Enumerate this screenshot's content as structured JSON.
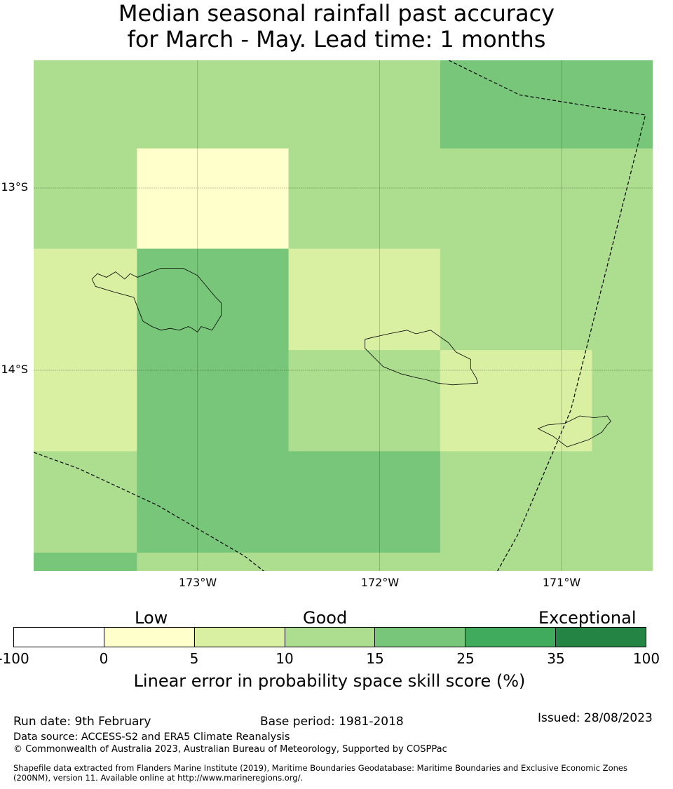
{
  "title": {
    "line1": "Median seasonal rainfall past accuracy",
    "line2": "for March - May. Lead time: 1 months"
  },
  "map": {
    "lat_labels": [
      "13°S",
      "14°S"
    ],
    "lon_labels": [
      "173°W",
      "172°W",
      "171°W"
    ],
    "extent": {
      "lon_min": -173.9,
      "lon_max": -170.5,
      "lat_min": -15.1,
      "lat_max": -12.3
    },
    "grid": {
      "lon_edges": [
        -173.9,
        -173.333,
        -172.5,
        -171.667,
        -170.833,
        -170.5
      ],
      "lat_edges": [
        -12.3,
        -12.783,
        -13.333,
        -13.889,
        -14.444,
        -15.0,
        -15.1
      ],
      "skill_classes": [
        [
          3,
          3,
          3,
          4,
          4
        ],
        [
          3,
          1,
          3,
          3,
          3
        ],
        [
          2,
          4,
          2,
          3,
          3
        ],
        [
          2,
          4,
          3,
          2,
          3
        ],
        [
          3,
          4,
          4,
          3,
          3
        ],
        [
          4,
          3,
          3,
          3,
          3
        ]
      ]
    },
    "boundary_lines": [
      [
        [
          -171.62,
          -12.3
        ],
        [
          -171.23,
          -12.49
        ],
        [
          -170.54,
          -12.6
        ],
        [
          -170.95,
          -14.22
        ],
        [
          -171.24,
          -14.9
        ],
        [
          -171.53,
          -15.42
        ]
      ],
      [
        [
          -173.9,
          -14.45
        ],
        [
          -173.65,
          -14.54
        ],
        [
          -173.22,
          -14.74
        ],
        [
          -172.74,
          -15.02
        ],
        [
          -172.28,
          -15.38
        ]
      ]
    ],
    "islands": [
      [
        [
          -173.58,
          -13.5
        ],
        [
          -173.55,
          -13.47
        ],
        [
          -173.5,
          -13.49
        ],
        [
          -173.45,
          -13.46
        ],
        [
          -173.4,
          -13.5
        ],
        [
          -173.37,
          -13.47
        ],
        [
          -173.33,
          -13.49
        ],
        [
          -173.2,
          -13.44
        ],
        [
          -173.08,
          -13.44
        ],
        [
          -173.0,
          -13.48
        ],
        [
          -172.9,
          -13.6
        ],
        [
          -172.87,
          -13.63
        ],
        [
          -172.87,
          -13.7
        ],
        [
          -172.92,
          -13.78
        ],
        [
          -172.98,
          -13.76
        ],
        [
          -173.0,
          -13.79
        ],
        [
          -173.03,
          -13.77
        ],
        [
          -173.05,
          -13.76
        ],
        [
          -173.1,
          -13.78
        ],
        [
          -173.15,
          -13.77
        ],
        [
          -173.2,
          -13.78
        ],
        [
          -173.25,
          -13.76
        ],
        [
          -173.3,
          -13.73
        ],
        [
          -173.35,
          -13.6
        ],
        [
          -173.46,
          -13.57
        ],
        [
          -173.56,
          -13.54
        ]
      ],
      [
        [
          -172.08,
          -13.83
        ],
        [
          -172.04,
          -13.82
        ],
        [
          -171.95,
          -13.8
        ],
        [
          -171.85,
          -13.78
        ],
        [
          -171.8,
          -13.8
        ],
        [
          -171.72,
          -13.78
        ],
        [
          -171.62,
          -13.85
        ],
        [
          -171.58,
          -13.9
        ],
        [
          -171.5,
          -13.94
        ],
        [
          -171.5,
          -13.99
        ],
        [
          -171.47,
          -14.04
        ],
        [
          -171.46,
          -14.07
        ],
        [
          -171.6,
          -14.08
        ],
        [
          -171.68,
          -14.07
        ],
        [
          -171.75,
          -14.05
        ],
        [
          -171.8,
          -14.04
        ],
        [
          -171.88,
          -14.02
        ],
        [
          -171.98,
          -13.98
        ],
        [
          -172.02,
          -13.94
        ],
        [
          -172.08,
          -13.88
        ]
      ],
      [
        [
          -171.13,
          -14.32
        ],
        [
          -171.08,
          -14.3
        ],
        [
          -170.98,
          -14.29
        ],
        [
          -170.9,
          -14.25
        ],
        [
          -170.82,
          -14.26
        ],
        [
          -170.75,
          -14.25
        ],
        [
          -170.73,
          -14.28
        ],
        [
          -170.75,
          -14.3
        ],
        [
          -170.78,
          -14.34
        ],
        [
          -170.85,
          -14.38
        ],
        [
          -170.97,
          -14.42
        ],
        [
          -171.05,
          -14.36
        ]
      ]
    ]
  },
  "legend": {
    "categories": [
      "Low",
      "Good",
      "Exceptional"
    ],
    "ticks": [
      "-100",
      "0",
      "5",
      "10",
      "15",
      "25",
      "35",
      "100"
    ],
    "colors": [
      "#ffffff",
      "#ffffcc",
      "#d9f0a3",
      "#addd8e",
      "#78c679",
      "#41ab5d",
      "#238443"
    ],
    "label": "Linear error in probability space skill score (%)"
  },
  "footer": {
    "run_date": "Run date: 9th February",
    "base_period": "Base period: 1981-2018",
    "issued": "Issued: 28/08/2023",
    "data_source": "Data source: ACCESS-S2 and ERA5 Climate Reanalysis",
    "copyright": "© Commonwealth of Australia 2023, Australian Bureau of Meteorology, Supported by COSPPac",
    "shapefile_1": "Shapefile data extracted from Flanders Marine Institute (2019), Maritime Boundaries Geodatabase: Maritime Boundaries and Exclusive Economic Zones",
    "shapefile_2": "(200NM), version 11. Available online at http://www.marineregions.org/."
  }
}
